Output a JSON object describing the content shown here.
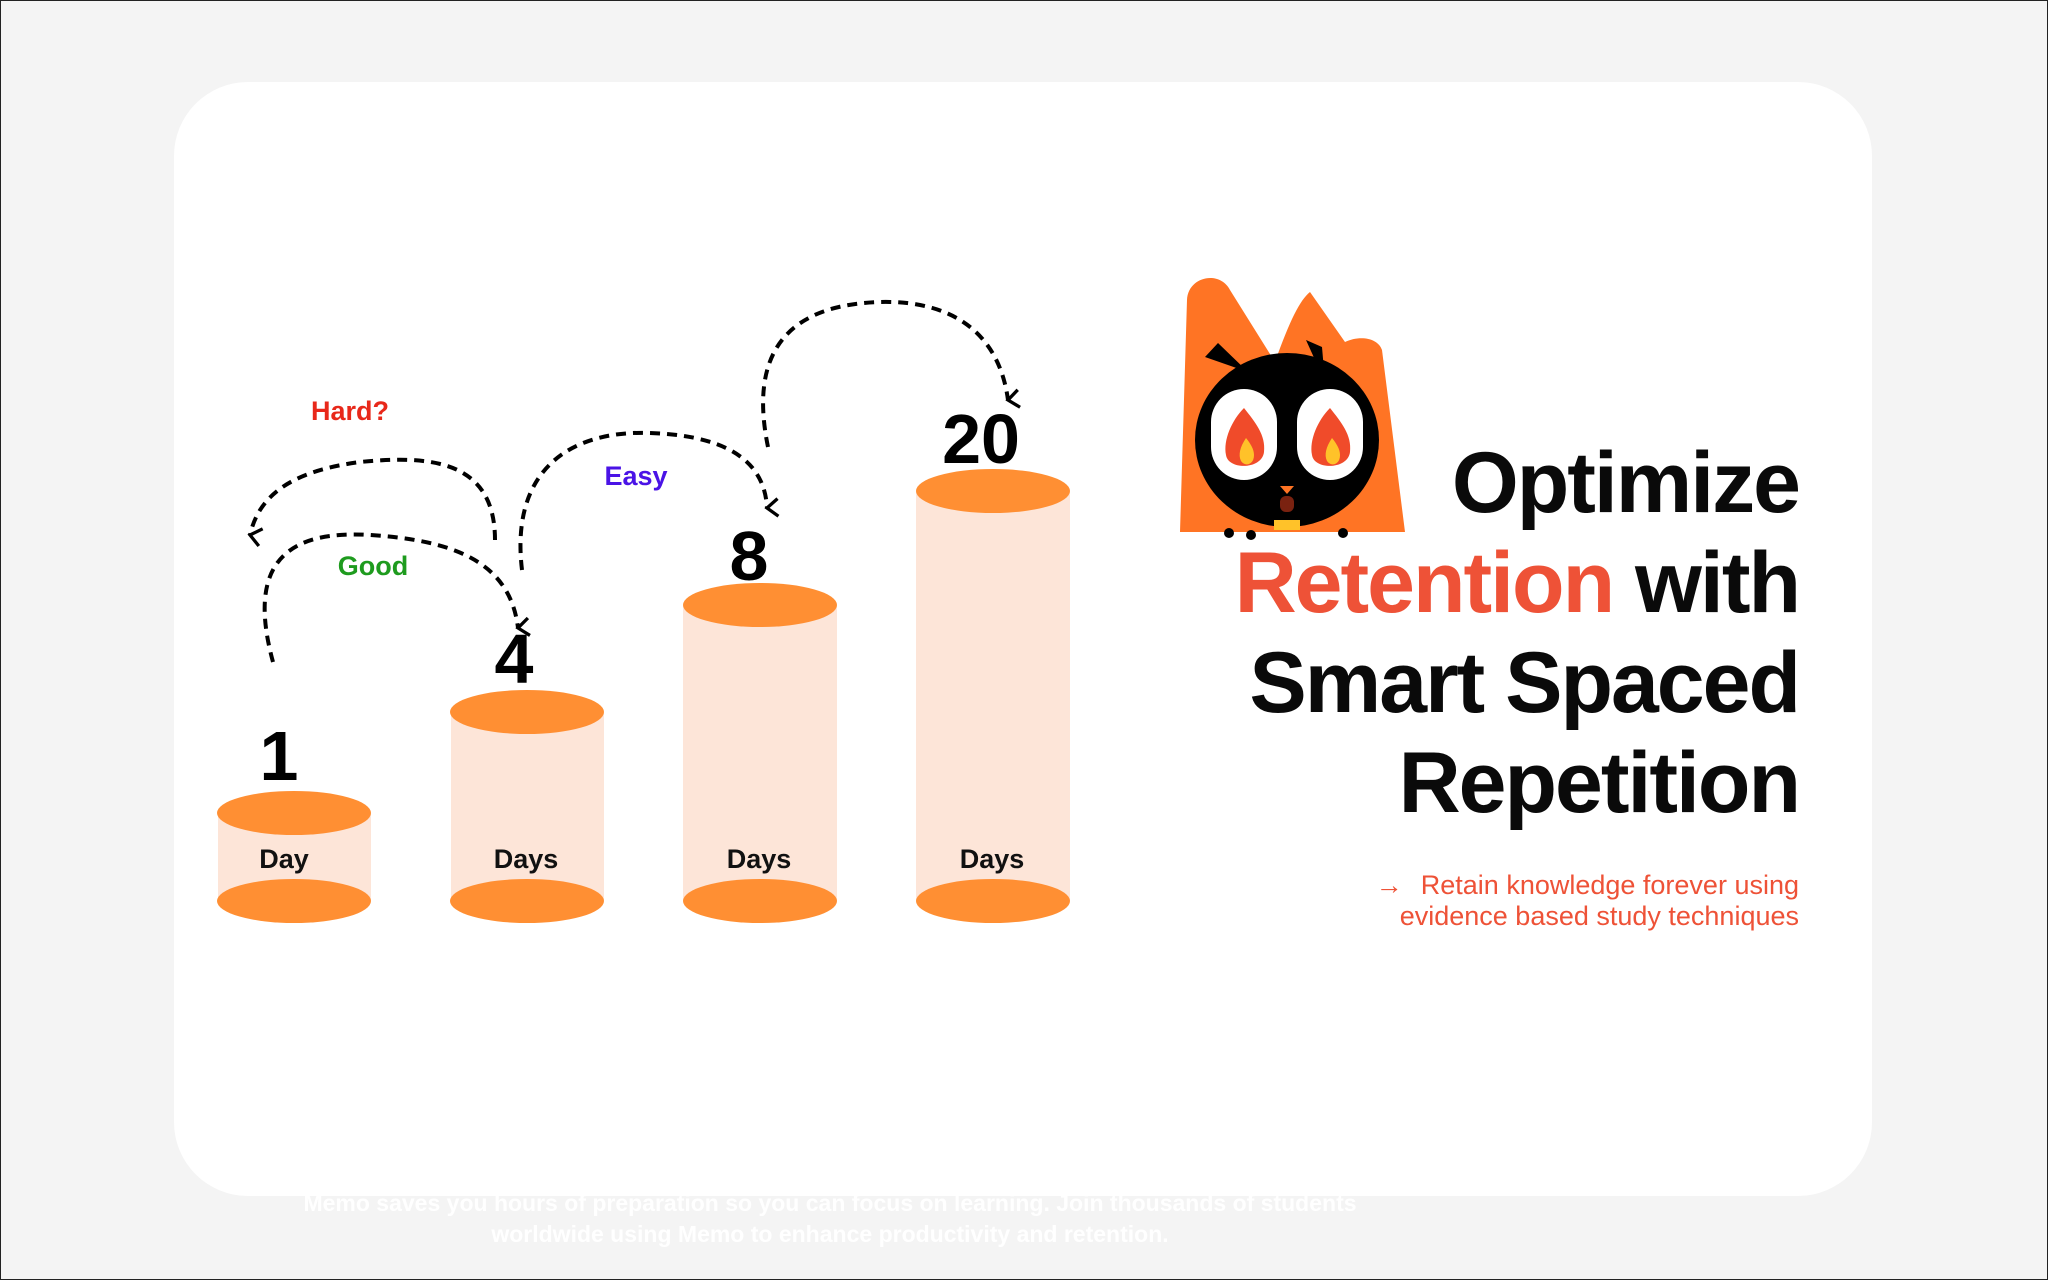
{
  "diagram": {
    "steps": [
      {
        "number": "1",
        "unit": "Day",
        "fill": 0.0
      },
      {
        "number": "4",
        "unit": "Days",
        "fill": 0.33
      },
      {
        "number": "8",
        "unit": "Days",
        "fill": 0.61
      },
      {
        "number": "20",
        "unit": "Days",
        "fill": 1.0
      }
    ],
    "ratings": {
      "hard": "Hard?",
      "good": "Good",
      "easy": "Easy"
    },
    "colors": {
      "cylinder_cap": "#ff8f33",
      "cylinder_body": "#fde5d8",
      "hard": "#e8281a",
      "good": "#1e9b1e",
      "easy": "#4a13e6"
    }
  },
  "mascot": {
    "icon": "flame-cat-mascot-icon"
  },
  "headline": {
    "part1": "Optimize",
    "accent": "Retention",
    "part2": "with",
    "part3": "Smart Spaced",
    "part4": "Repetition",
    "accent_color": "#ee5237"
  },
  "subheadline": {
    "arrow": "→",
    "line1": "Retain knowledge forever using",
    "line2": "evidence based study techniques"
  },
  "footer": {
    "text1": "Memo saves you hours of preparation so you can ",
    "bold1": "focus on learning.",
    "text2": " Join thousands of students",
    "text3": "worldwide using Memo to enhance ",
    "bold2": "productivity and retention",
    "text4": "."
  }
}
